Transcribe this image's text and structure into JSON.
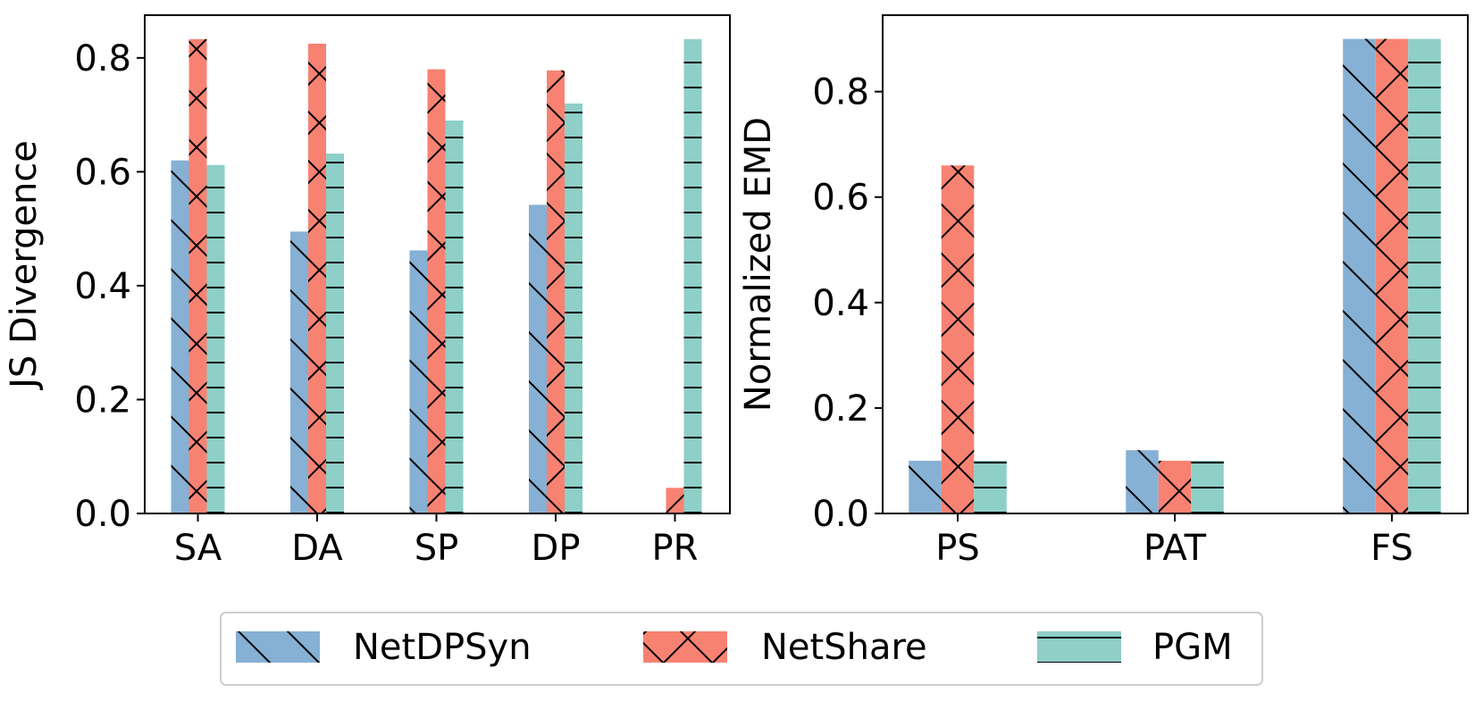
{
  "colors": {
    "NetDPSyn": "#86b0d4",
    "NetShare": "#f88272",
    "PGM": "#8ecfc8"
  },
  "chart_data": [
    {
      "type": "bar",
      "title": "",
      "xlabel": "",
      "ylabel": "JS Divergence",
      "ylim": [
        0,
        0.875
      ],
      "yticks": [
        "0.0",
        "0.2",
        "0.4",
        "0.6",
        "0.8"
      ],
      "categories": [
        "SA",
        "DA",
        "SP",
        "DP",
        "PR"
      ],
      "series": [
        {
          "name": "NetDPSyn",
          "hatch": "backslash",
          "values": [
            0.62,
            0.495,
            0.462,
            0.542,
            0.0
          ]
        },
        {
          "name": "NetShare",
          "hatch": "cross",
          "values": [
            0.833,
            0.825,
            0.78,
            0.778,
            0.045
          ]
        },
        {
          "name": "PGM",
          "hatch": "horizontal",
          "values": [
            0.612,
            0.632,
            0.69,
            0.72,
            0.833
          ]
        }
      ]
    },
    {
      "type": "bar",
      "title": "",
      "xlabel": "",
      "ylabel": "Normalized EMD",
      "ylim": [
        0,
        0.945
      ],
      "yticks": [
        "0.0",
        "0.2",
        "0.4",
        "0.6",
        "0.8"
      ],
      "categories": [
        "PS",
        "PAT",
        "FS"
      ],
      "series": [
        {
          "name": "NetDPSyn",
          "hatch": "backslash",
          "values": [
            0.1,
            0.12,
            0.9
          ]
        },
        {
          "name": "NetShare",
          "hatch": "cross",
          "values": [
            0.66,
            0.1,
            0.9
          ]
        },
        {
          "name": "PGM",
          "hatch": "horizontal",
          "values": [
            0.1,
            0.1,
            0.9
          ]
        }
      ]
    }
  ],
  "legend": {
    "position": "bottom-center",
    "entries": [
      "NetDPSyn",
      "NetShare",
      "PGM"
    ]
  }
}
